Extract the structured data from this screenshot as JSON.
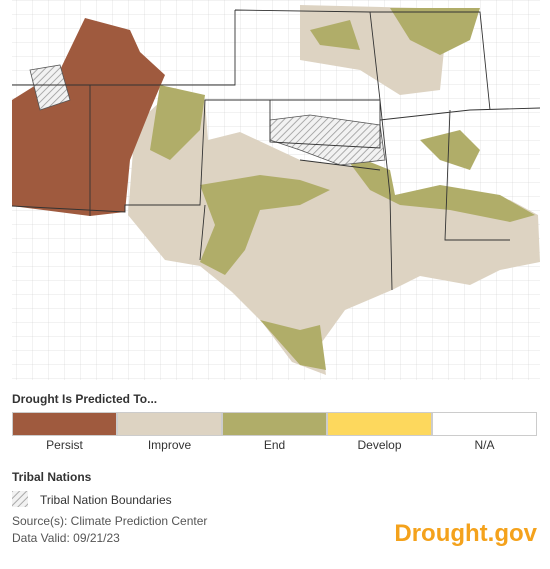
{
  "legend": {
    "title": "Drought Is Predicted To...",
    "items": [
      {
        "label": "Persist",
        "color": "#9f5a3e"
      },
      {
        "label": "Improve",
        "color": "#ddd3c2"
      },
      {
        "label": "End",
        "color": "#b0ad69"
      },
      {
        "label": "Develop",
        "color": "#fdd85d"
      },
      {
        "label": "N/A",
        "color": "#ffffff"
      }
    ]
  },
  "tribal": {
    "title": "Tribal Nations",
    "label": "Tribal Nation Boundaries"
  },
  "footer": {
    "source": "Source(s): Climate Prediction Center",
    "valid": "Data Valid: 09/21/23",
    "brand": "Drought.gov"
  }
}
